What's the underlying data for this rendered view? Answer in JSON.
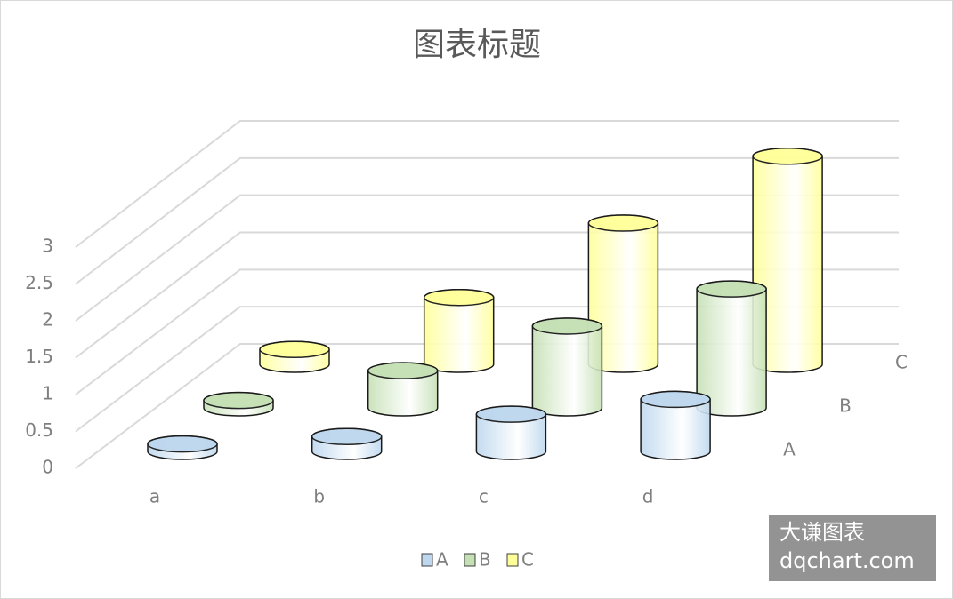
{
  "chart_data": {
    "type": "bar3d",
    "title": "图表标题",
    "categories": [
      "a",
      "b",
      "c",
      "d"
    ],
    "series": [
      {
        "name": "A",
        "color": "#bdd7ee",
        "values": [
          0.1,
          0.2,
          0.5,
          0.7
        ]
      },
      {
        "name": "B",
        "color": "#c5e0b4",
        "values": [
          0.1,
          0.5,
          1.1,
          1.6
        ]
      },
      {
        "name": "C",
        "color": "#ffff99",
        "values": [
          0.2,
          0.9,
          1.9,
          2.8
        ]
      }
    ],
    "ylim": [
      0,
      3
    ],
    "yticks": [
      0,
      0.5,
      1,
      1.5,
      2,
      2.5,
      3
    ],
    "grid": true,
    "legend": "bottom"
  },
  "watermark": [
    "大谦图表",
    "dqchart.com"
  ]
}
